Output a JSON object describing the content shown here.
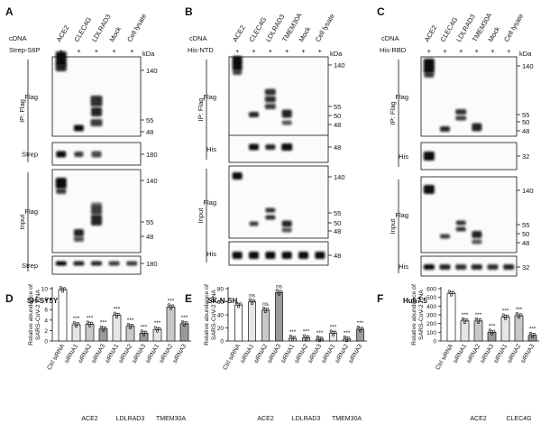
{
  "figure": {
    "blots": [
      {
        "letter": "A",
        "cdna_label": "cDNA",
        "lanes": [
          "ACE2",
          "CLEC4G",
          "LDLRAD3",
          "Mock",
          "Cell lysate"
        ],
        "treatment_label": "Strep-S6P",
        "plus_marks": [
          "+",
          "+",
          "+",
          "+",
          "+"
        ],
        "kda_label": "kDa",
        "sections": [
          {
            "group": "IP: Flag",
            "strips": [
              {
                "name": "Flag",
                "markers": [
                  "140",
                  "55",
                  "48"
                ]
              },
              {
                "name": "Strep",
                "markers": [
                  "180"
                ]
              }
            ]
          },
          {
            "group": "Input",
            "strips": [
              {
                "name": "Flag",
                "markers": [
                  "140",
                  "55",
                  "48"
                ]
              },
              {
                "name": "Strep",
                "markers": [
                  "180"
                ]
              }
            ]
          }
        ]
      },
      {
        "letter": "B",
        "cdna_label": "cDNA",
        "lanes": [
          "ACE2",
          "CLEC4G",
          "LDLRAD3",
          "TMEM30A",
          "Mock",
          "Cell lysate"
        ],
        "treatment_label": "His-NTD",
        "plus_marks": [
          "+",
          "+",
          "+",
          "+",
          "+",
          "+"
        ],
        "kda_label": "kDa",
        "sections": [
          {
            "group": "IP: Flag",
            "strips": [
              {
                "name": "Flag",
                "markers": [
                  "140",
                  "55",
                  "50",
                  "48"
                ]
              },
              {
                "name": "His",
                "markers": [
                  "48"
                ]
              }
            ]
          },
          {
            "group": "Input",
            "strips": [
              {
                "name": "Flag",
                "markers": [
                  "140",
                  "55",
                  "50",
                  "48"
                ]
              },
              {
                "name": "His",
                "markers": [
                  "48"
                ]
              }
            ]
          }
        ]
      },
      {
        "letter": "C",
        "cdna_label": "cDNA",
        "lanes": [
          "ACE2",
          "CLEC4G",
          "LDLRAD3",
          "TMEM30A",
          "Mock",
          "Cell lysate"
        ],
        "treatment_label": "His-RBD",
        "plus_marks": [
          "+",
          "+",
          "+",
          "+",
          "+",
          "+"
        ],
        "kda_label": "kDa",
        "sections": [
          {
            "group": "IP: Flag",
            "strips": [
              {
                "name": "Flag",
                "markers": [
                  "140",
                  "55",
                  "50",
                  "48"
                ]
              },
              {
                "name": "His",
                "markers": [
                  "32"
                ]
              }
            ]
          },
          {
            "group": "Input",
            "strips": [
              {
                "name": "Flag",
                "markers": [
                  "140",
                  "55",
                  "50",
                  "48"
                ]
              },
              {
                "name": "His",
                "markers": [
                  "32"
                ]
              }
            ]
          }
        ]
      }
    ],
    "band_color": "#111111",
    "bar_colors": [
      "#ffffff",
      "#e6e6e6",
      "#c8c8c8",
      "#9a9a9a"
    ],
    "point_color": "#111111"
  },
  "chart_data": [
    {
      "panel": "D",
      "type": "bar",
      "title": "SH-SY5Y",
      "ylabel": "Relative abundance of SARS-CoV-2 RNA",
      "ylim": [
        0,
        10
      ],
      "yticks": [
        0,
        2,
        4,
        6,
        8,
        10
      ],
      "categories": [
        "Ctrl siRNA",
        "siRNA1",
        "siRNA2",
        "siRNA3",
        "siRNA1",
        "siRNA2",
        "siRNA3",
        "siRNA1",
        "siRNA2",
        "siRNA3"
      ],
      "values": [
        9.8,
        3.1,
        3.2,
        2.3,
        4.9,
        2.8,
        1.5,
        2.2,
        6.5,
        3.3
      ],
      "shade": [
        0,
        1,
        2,
        3,
        1,
        2,
        3,
        1,
        2,
        3
      ],
      "significance": [
        "",
        "***",
        "***",
        "***",
        "***",
        "***",
        "***",
        "***",
        "***",
        "***"
      ],
      "groups": [
        {
          "label": "ACE2",
          "from": 1,
          "to": 3
        },
        {
          "label": "LDLRAD3",
          "from": 4,
          "to": 6
        },
        {
          "label": "TMEM30A",
          "from": 7,
          "to": 9
        }
      ]
    },
    {
      "panel": "E",
      "type": "bar",
      "title": "SK-N-SH",
      "ylabel": "Relative abundance of SARS-CoV-2 RNA",
      "ylim": [
        0,
        80
      ],
      "yticks": [
        0,
        20,
        40,
        60,
        80
      ],
      "categories": [
        "Ctrl siRNA",
        "siRNA1",
        "siRNA2",
        "siRNA3",
        "siRNA1",
        "siRNA2",
        "siRNA3",
        "siRNA1",
        "siRNA2",
        "siRNA3"
      ],
      "values": [
        55,
        60,
        47,
        74,
        4,
        5,
        3,
        12,
        3,
        18
      ],
      "shade": [
        0,
        1,
        2,
        3,
        1,
        2,
        3,
        1,
        2,
        3
      ],
      "significance": [
        "",
        "ns",
        "ns",
        "ns",
        "***",
        "***",
        "***",
        "***",
        "***",
        "***"
      ],
      "groups": [
        {
          "label": "ACE2",
          "from": 1,
          "to": 3
        },
        {
          "label": "LDLRAD3",
          "from": 4,
          "to": 6
        },
        {
          "label": "TMEM30A",
          "from": 7,
          "to": 9
        }
      ]
    },
    {
      "panel": "F",
      "type": "bar",
      "title": "Huh7.5",
      "ylabel": "Relative abundance of SARS-CoV-2 RNA",
      "ylim": [
        0,
        600
      ],
      "yticks": [
        0,
        100,
        200,
        300,
        400,
        500,
        600
      ],
      "categories": [
        "Ctrl siRNA",
        "siRNA1",
        "siRNA2",
        "siRNA3",
        "siRNA1",
        "siRNA2",
        "siRNA3"
      ],
      "values": [
        545,
        230,
        230,
        100,
        275,
        290,
        65
      ],
      "shade": [
        0,
        1,
        2,
        3,
        1,
        2,
        3
      ],
      "significance": [
        "",
        "***",
        "***",
        "***",
        "***",
        "***",
        "***"
      ],
      "groups": [
        {
          "label": "ACE2",
          "from": 1,
          "to": 3
        },
        {
          "label": "CLEC4G",
          "from": 4,
          "to": 6
        }
      ]
    }
  ]
}
